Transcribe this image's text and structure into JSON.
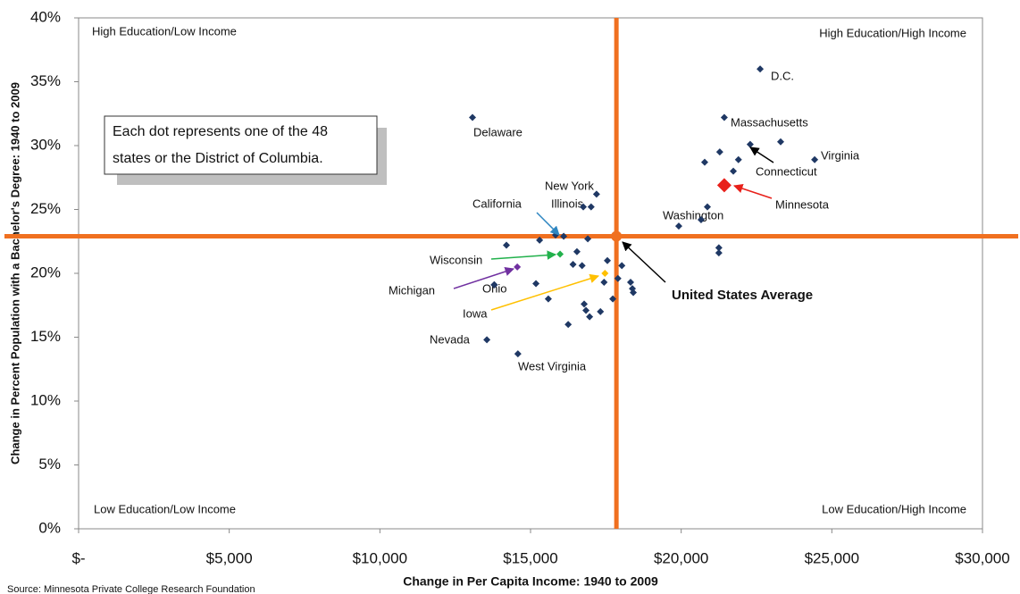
{
  "chart_data": {
    "type": "scatter",
    "x_label": "Change in Per Capita Income: 1940 to 2009",
    "y_label": "Change in Percent Population with a Bachelor's Degree: 1940 to 2009",
    "source": "Source: Minnesota Private College Research Foundation",
    "note": [
      "Each dot represents one of the 48",
      "states or the District of Columbia."
    ],
    "quadrants": [
      "High Education/Low Income",
      "High Education/High Income",
      "Low Education/Low Income",
      "Low Education/High Income"
    ],
    "color": "#1f3864",
    "average_color": "#f07020",
    "xlim": [
      0,
      30000
    ],
    "ylim": [
      0,
      40
    ],
    "xticks": [
      {
        "value": 0,
        "label": "$-"
      },
      {
        "value": 5000,
        "label": "$5,000"
      },
      {
        "value": 10000,
        "label": "$10,000"
      },
      {
        "value": 15000,
        "label": "$15,000"
      },
      {
        "value": 20000,
        "label": "$20,000"
      },
      {
        "value": 25000,
        "label": "$25,000"
      },
      {
        "value": 30000,
        "label": "$30,000"
      }
    ],
    "yticks": [
      {
        "value": 0,
        "label": "0%"
      },
      {
        "value": 5,
        "label": "5%"
      },
      {
        "value": 10,
        "label": "10%"
      },
      {
        "value": 15,
        "label": "15%"
      },
      {
        "value": 20,
        "label": "20%"
      },
      {
        "value": 25,
        "label": "25%"
      },
      {
        "value": 30,
        "label": "30%"
      },
      {
        "value": 35,
        "label": "35%"
      },
      {
        "value": 40,
        "label": "40%"
      }
    ],
    "average": {
      "label": "United States Average",
      "x": 17850,
      "y": 22.9
    },
    "points": [
      {
        "label": "Delaware",
        "x": 13073,
        "y": 32.2
      },
      {
        "label": "D.C.",
        "x": 22620,
        "y": 36.0
      },
      {
        "label": "Massachusetts",
        "x": 21430,
        "y": 32.2
      },
      {
        "label": "Virginia",
        "x": 24430,
        "y": 28.9
      },
      {
        "label": "Connecticut",
        "x": 22290,
        "y": 30.1
      },
      {
        "label": "Minnesota",
        "x": 21430,
        "y": 26.9,
        "color": "#e8201a"
      },
      {
        "label": "New York",
        "x": 17190,
        "y": 26.2
      },
      {
        "label": "Illinois",
        "x": 17010,
        "y": 25.2
      },
      {
        "label": "California",
        "x": 15830,
        "y": 23.0
      },
      {
        "label": "Washington",
        "x": 20870,
        "y": 25.2
      },
      {
        "label": "Wisconsin",
        "x": 15980,
        "y": 21.5,
        "color": "#22b14c"
      },
      {
        "label": "Michigan",
        "x": 14560,
        "y": 20.5,
        "color": "#7030a0"
      },
      {
        "label": "Ohio",
        "x": 13790,
        "y": 19.1
      },
      {
        "label": "Iowa",
        "x": 17470,
        "y": 20.0,
        "color": "#ffc000"
      },
      {
        "label": "Nevada",
        "x": 13550,
        "y": 14.8
      },
      {
        "label": "West Virginia",
        "x": 14580,
        "y": 13.7
      },
      {
        "x": 16750,
        "y": 25.2
      },
      {
        "x": 23300,
        "y": 30.3
      },
      {
        "x": 21280,
        "y": 29.5
      },
      {
        "x": 21900,
        "y": 28.9
      },
      {
        "x": 21730,
        "y": 28.0
      },
      {
        "x": 20780,
        "y": 28.7
      },
      {
        "x": 20660,
        "y": 24.2
      },
      {
        "x": 19920,
        "y": 23.7
      },
      {
        "x": 21250,
        "y": 22.0
      },
      {
        "x": 21250,
        "y": 21.6
      },
      {
        "x": 14200,
        "y": 22.2
      },
      {
        "x": 15300,
        "y": 22.6
      },
      {
        "x": 16900,
        "y": 22.7
      },
      {
        "x": 16540,
        "y": 21.7
      },
      {
        "x": 16410,
        "y": 20.7
      },
      {
        "x": 16710,
        "y": 20.6
      },
      {
        "x": 17550,
        "y": 21.0
      },
      {
        "x": 18030,
        "y": 20.6
      },
      {
        "x": 15180,
        "y": 19.2
      },
      {
        "x": 17440,
        "y": 19.3
      },
      {
        "x": 18320,
        "y": 19.3
      },
      {
        "x": 18380,
        "y": 18.8
      },
      {
        "x": 18410,
        "y": 18.5
      },
      {
        "x": 17730,
        "y": 18.0
      },
      {
        "x": 15590,
        "y": 18.0
      },
      {
        "x": 16780,
        "y": 17.6
      },
      {
        "x": 16840,
        "y": 17.1
      },
      {
        "x": 16960,
        "y": 16.6
      },
      {
        "x": 17320,
        "y": 17.0
      },
      {
        "x": 16250,
        "y": 16.0
      },
      {
        "x": 13800,
        "y": 19.1
      },
      {
        "x": 16100,
        "y": 22.9
      },
      {
        "x": 17900,
        "y": 19.6
      }
    ]
  }
}
